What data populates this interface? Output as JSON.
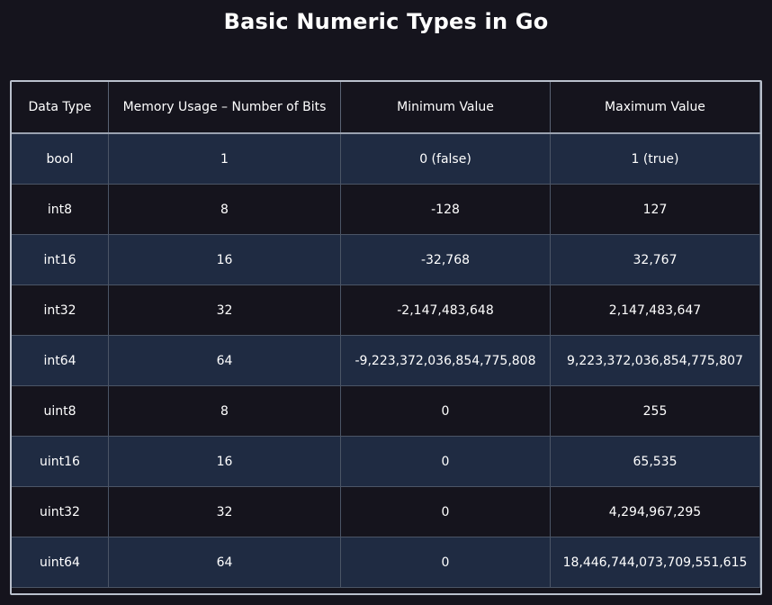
{
  "title": "Basic Numeric Types in Go",
  "table": {
    "headers": [
      "Data Type",
      "Memory Usage – Number of Bits",
      "Minimum Value",
      "Maximum Value"
    ],
    "rows": [
      [
        "bool",
        "1",
        "0 (false)",
        "1 (true)"
      ],
      [
        "int8",
        "8",
        "-128",
        "127"
      ],
      [
        "int16",
        "16",
        "-32,768",
        "32,767"
      ],
      [
        "int32",
        "32",
        "-2,147,483,648",
        "2,147,483,647"
      ],
      [
        "int64",
        "64",
        "-9,223,372,036,854,775,808",
        "9,223,372,036,854,775,807"
      ],
      [
        "uint8",
        "8",
        "0",
        "255"
      ],
      [
        "uint16",
        "16",
        "0",
        "65,535"
      ],
      [
        "uint32",
        "32",
        "0",
        "4,294,967,295"
      ],
      [
        "uint64",
        "64",
        "0",
        "18,446,744,073,709,551,615"
      ]
    ]
  },
  "colors": {
    "background": "#15141d",
    "row_alt": "#1f2b42",
    "grid": "#4b5566",
    "text": "#ffffff"
  }
}
